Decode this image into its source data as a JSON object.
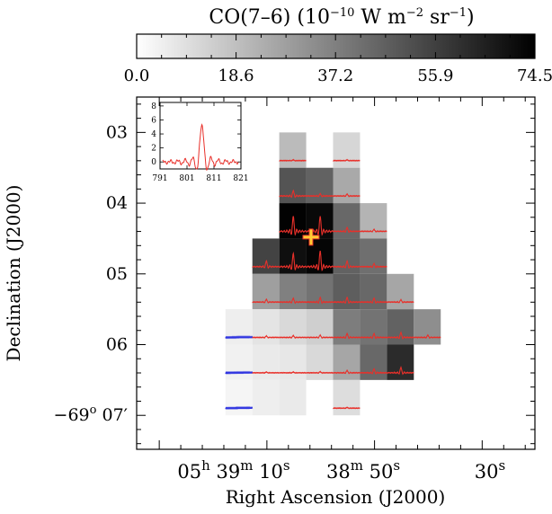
{
  "chart_data": {
    "type": "heatmap",
    "title": "CO(7–6) (10⁻¹⁰ W m⁻² sr⁻¹)",
    "colorbar": {
      "min": 0.0,
      "max": 74.5,
      "ticks": [
        "0.0",
        "18.6",
        "37.2",
        "55.9",
        "74.5"
      ],
      "cmap": "white-to-black"
    },
    "xlabel": "Right Ascension (J2000)",
    "ylabel": "Declination (J2000)",
    "x_ticks": [
      {
        "value": 43.6,
        "label": "05h 39m 10s"
      },
      {
        "value": 51.8,
        "label": "38m 50s"
      },
      {
        "value": 64.3,
        "label": "30s"
      }
    ],
    "y_ticks": [
      {
        "value": 3,
        "label": "03"
      },
      {
        "value": 4,
        "label": "04"
      },
      {
        "value": 5,
        "label": "05"
      },
      {
        "value": 6,
        "label": "06"
      },
      {
        "value": 7,
        "label": "−69° 07′"
      }
    ],
    "xlim": [
      34,
      71
    ],
    "ylim": [
      7.48,
      2.5
    ],
    "pixel_size": {
      "ra": 2.5,
      "dec": 0.5
    },
    "pixels": [
      {
        "ra": 48.5,
        "dec": 3.25,
        "value": 20,
        "spec": "red",
        "amp": 0.02
      },
      {
        "ra": 53.5,
        "dec": 3.25,
        "value": 12,
        "spec": "red",
        "amp": 0.02
      },
      {
        "ra": 48.5,
        "dec": 3.75,
        "value": 50,
        "spec": "red",
        "amp": 0.14
      },
      {
        "ra": 51.0,
        "dec": 3.75,
        "value": 46,
        "spec": "red",
        "amp": 0.06
      },
      {
        "ra": 53.5,
        "dec": 3.75,
        "value": 25,
        "spec": "red",
        "amp": 0.05
      },
      {
        "ra": 48.5,
        "dec": 4.25,
        "value": 74,
        "spec": "red",
        "amp": 0.4
      },
      {
        "ra": 51.0,
        "dec": 4.25,
        "value": 72,
        "spec": "red",
        "amp": 0.4
      },
      {
        "ra": 53.5,
        "dec": 4.25,
        "value": 44,
        "spec": "red",
        "amp": 0.1
      },
      {
        "ra": 56.0,
        "dec": 4.25,
        "value": 22,
        "spec": "red",
        "amp": 0.05
      },
      {
        "ra": 46.0,
        "dec": 4.75,
        "value": 55,
        "spec": "red",
        "amp": 0.15
      },
      {
        "ra": 48.5,
        "dec": 4.75,
        "value": 70,
        "spec": "red",
        "amp": 0.35
      },
      {
        "ra": 51.0,
        "dec": 4.75,
        "value": 73,
        "spec": "red",
        "amp": 0.42
      },
      {
        "ra": 53.5,
        "dec": 4.75,
        "value": 46,
        "spec": "red",
        "amp": 0.15
      },
      {
        "ra": 56.0,
        "dec": 4.75,
        "value": 42,
        "spec": "red",
        "amp": 0.08
      },
      {
        "ra": 46.0,
        "dec": 5.25,
        "value": 28,
        "spec": "red",
        "amp": 0.07
      },
      {
        "ra": 48.5,
        "dec": 5.25,
        "value": 37,
        "spec": "red",
        "amp": 0.1
      },
      {
        "ra": 51.0,
        "dec": 5.25,
        "value": 41,
        "spec": "red",
        "amp": 0.12
      },
      {
        "ra": 53.5,
        "dec": 5.25,
        "value": 47,
        "spec": "red",
        "amp": 0.12
      },
      {
        "ra": 56.0,
        "dec": 5.25,
        "value": 44,
        "spec": "red",
        "amp": 0.1
      },
      {
        "ra": 58.5,
        "dec": 5.25,
        "value": 26,
        "spec": "red",
        "amp": 0.06
      },
      {
        "ra": 43.5,
        "dec": 5.75,
        "value": 5,
        "spec": "blue",
        "amp": 0
      },
      {
        "ra": 46.0,
        "dec": 5.75,
        "value": 8,
        "spec": "red",
        "amp": 0.04
      },
      {
        "ra": 48.5,
        "dec": 5.75,
        "value": 11,
        "spec": "red",
        "amp": 0.05
      },
      {
        "ra": 51.0,
        "dec": 5.75,
        "value": 14,
        "spec": "red",
        "amp": 0.06
      },
      {
        "ra": 53.5,
        "dec": 5.75,
        "value": 38,
        "spec": "red",
        "amp": 0.1
      },
      {
        "ra": 56.0,
        "dec": 5.75,
        "value": 41,
        "spec": "red",
        "amp": 0.1
      },
      {
        "ra": 58.5,
        "dec": 5.75,
        "value": 46,
        "spec": "red",
        "amp": 0.13
      },
      {
        "ra": 61.0,
        "dec": 5.75,
        "value": 33,
        "spec": "red",
        "amp": 0.06
      },
      {
        "ra": 43.5,
        "dec": 6.25,
        "value": 4,
        "spec": "blue",
        "amp": 0
      },
      {
        "ra": 46.0,
        "dec": 6.25,
        "value": 6,
        "spec": "red",
        "amp": 0.02
      },
      {
        "ra": 48.5,
        "dec": 6.25,
        "value": 7,
        "spec": "red",
        "amp": 0.02
      },
      {
        "ra": 51.0,
        "dec": 6.25,
        "value": 11,
        "spec": "red",
        "amp": 0.03
      },
      {
        "ra": 53.5,
        "dec": 6.25,
        "value": 26,
        "spec": "red",
        "amp": 0.06
      },
      {
        "ra": 56.0,
        "dec": 6.25,
        "value": 44,
        "spec": "red",
        "amp": 0.1
      },
      {
        "ra": 58.5,
        "dec": 6.25,
        "value": 62,
        "spec": "red",
        "amp": 0.14
      },
      {
        "ra": 43.5,
        "dec": 6.75,
        "value": 3,
        "spec": "blue",
        "amp": 0
      },
      {
        "ra": 46.0,
        "dec": 6.75,
        "value": 5,
        "spec": "none",
        "amp": 0
      },
      {
        "ra": 48.5,
        "dec": 6.75,
        "value": 6,
        "spec": "none",
        "amp": 0
      },
      {
        "ra": 53.5,
        "dec": 6.75,
        "value": 10,
        "spec": "red",
        "amp": 0.02
      }
    ],
    "marker": {
      "ra": 50.2,
      "dec": 4.48,
      "symbol": "+",
      "color": "#ffcc33"
    },
    "inset": {
      "type": "line",
      "x_ticks": [
        791,
        801,
        811,
        821
      ],
      "y_ticks": [
        0,
        2,
        4,
        6,
        8
      ],
      "xlim": [
        791,
        821
      ],
      "ylim": [
        -1,
        8.5
      ],
      "peak": {
        "x": 806.5,
        "y": 5.2
      },
      "color": "#e8302a"
    }
  },
  "colors": {
    "red_spectrum": "#e8302a",
    "blue_spectrum": "#2f34e0",
    "marker": "#ffcc33",
    "marker_outline": "#e8302a"
  }
}
